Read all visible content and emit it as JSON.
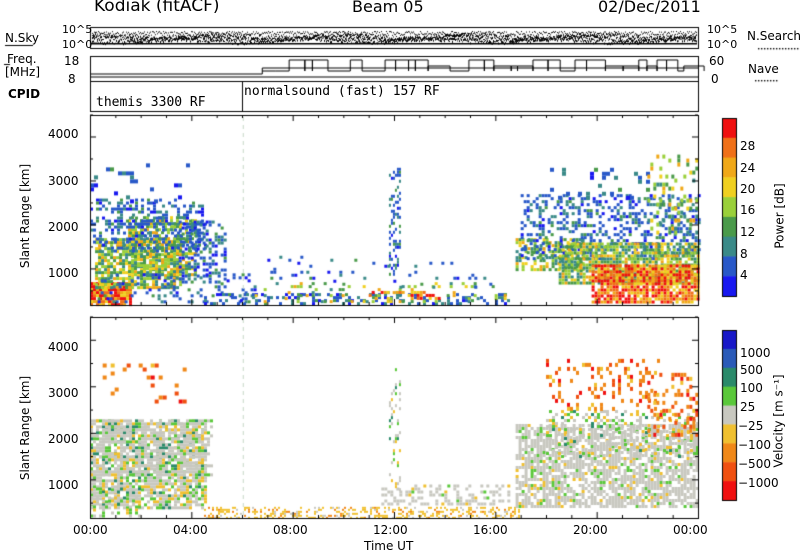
{
  "header": {
    "station": "Kodiak (fitACF)",
    "beam": "Beam 05",
    "date": "02/Dec/2011"
  },
  "top_panel": {
    "left_top_label": "N.Sky",
    "left_mid_label": "Freq.",
    "left_unit_label": "[MHz]",
    "left_bottom_label": "CPID",
    "right_top_label": "N.Search",
    "right_bottom_label": "Nave",
    "noise_ticks": [
      "10^5",
      "10^0"
    ],
    "freq_ticks": [
      "18",
      "8"
    ],
    "nave_ticks": [
      "60",
      "0"
    ],
    "cpid_segments": [
      {
        "label": "themis 3300 RF",
        "start_hour": 0
      },
      {
        "label": "normalsound (fast) 157 RF",
        "start_hour": 6
      }
    ]
  },
  "chart_data": [
    {
      "type": "heatmap",
      "title": "",
      "xlabel": "Time UT",
      "ylabel": "Slant Range [km]",
      "xlim": [
        0,
        24
      ],
      "ylim": [
        180,
        4500
      ],
      "x_ticks": [
        "00:00",
        "04:00",
        "08:00",
        "12:00",
        "16:00",
        "20:00",
        "00:00"
      ],
      "y_ticks": [
        "1000",
        "2000",
        "3000",
        "4000"
      ],
      "colorbar": {
        "label": "Power [dB]",
        "ticks": [
          "4",
          "8",
          "12",
          "16",
          "20",
          "24",
          "28"
        ],
        "range": [
          0,
          30
        ],
        "colors": [
          "#1818f0",
          "#2858c8",
          "#3a8a88",
          "#4a9a4a",
          "#9ad03a",
          "#f0d020",
          "#f0a818",
          "#f07018",
          "#f01010"
        ]
      }
    },
    {
      "type": "heatmap",
      "title": "",
      "xlabel": "Time UT",
      "ylabel": "Slant Range [km]",
      "xlim": [
        0,
        24
      ],
      "ylim": [
        180,
        4500
      ],
      "x_ticks": [
        "00:00",
        "04:00",
        "08:00",
        "12:00",
        "16:00",
        "20:00",
        "00:00"
      ],
      "y_ticks": [
        "1000",
        "2000",
        "3000",
        "4000"
      ],
      "colorbar": {
        "label": "Velocity [m s⁻¹]",
        "ticks": [
          "1000",
          "500",
          "100",
          "25",
          "−25",
          "−100",
          "−500",
          "−1000"
        ],
        "range": [
          -1200,
          1200
        ],
        "colors": [
          "#1818c8",
          "#2a5ab8",
          "#2a8a6a",
          "#5ac83a",
          "#c8c8c0",
          "#f0c030",
          "#f08818",
          "#f05010",
          "#f01010"
        ]
      }
    }
  ]
}
